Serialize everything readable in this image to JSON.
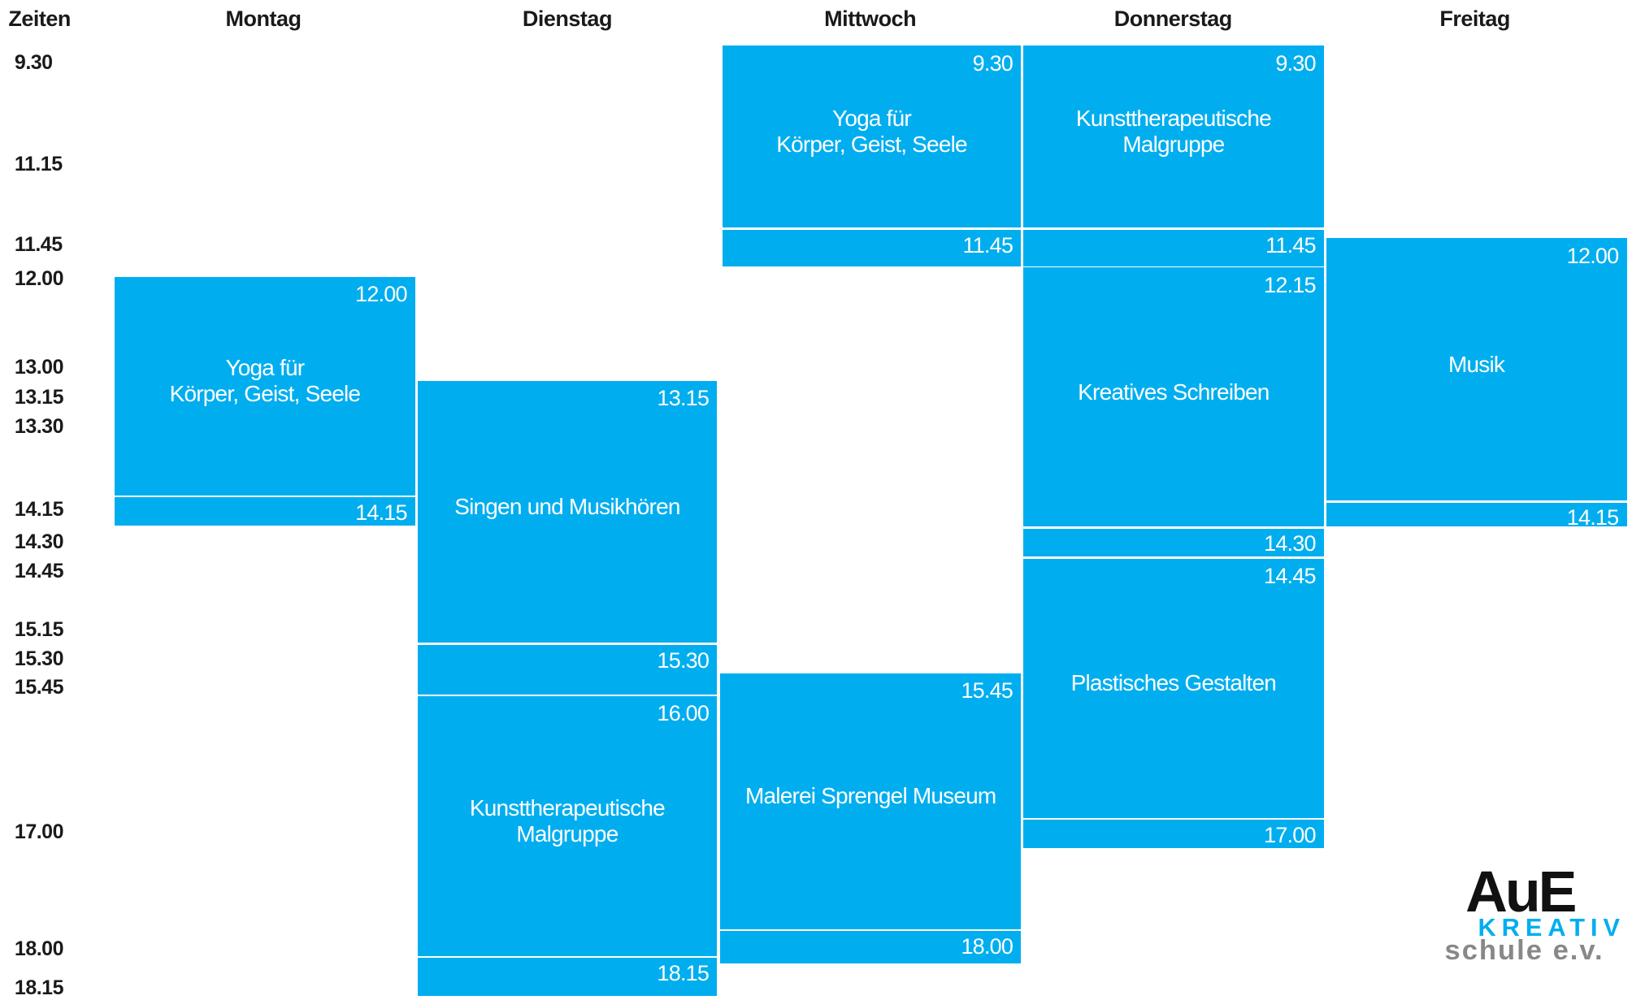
{
  "header": {
    "times_label": "Zeiten"
  },
  "times": [
    "9.30",
    "11.15",
    "11.45",
    "12.00",
    "13.00",
    "13.15",
    "13.30",
    "14.15",
    "14.30",
    "14.45",
    "15.15",
    "15.30",
    "15.45",
    "17.00",
    "18.00",
    "18.15"
  ],
  "days": [
    {
      "name": "Montag",
      "sessions": [
        {
          "start": "12.00",
          "title": [
            "Yoga für",
            "Körper, Geist, Seele"
          ],
          "end": "14.15"
        }
      ]
    },
    {
      "name": "Dienstag",
      "sessions": [
        {
          "start": "13.15",
          "title": [
            "Singen und Musikhören"
          ],
          "end": "15.30"
        },
        {
          "start": "16.00",
          "title": [
            "Kunsttherapeutische",
            "Malgruppe"
          ],
          "end": "18.15"
        }
      ]
    },
    {
      "name": "Mittwoch",
      "sessions": [
        {
          "start": "9.30",
          "title": [
            "Yoga für",
            "Körper, Geist, Seele"
          ],
          "end": "11.45"
        },
        {
          "start": "15.45",
          "title": [
            "Malerei Sprengel Museum"
          ],
          "end": "18.00"
        }
      ]
    },
    {
      "name": "Donnerstag",
      "sessions": [
        {
          "start": "9.30",
          "title": [
            "Kunsttherapeutische",
            "Malgruppe"
          ],
          "end": "11.45"
        },
        {
          "start": "12.15",
          "title": [
            "Kreatives Schreiben"
          ],
          "end": "14.30"
        },
        {
          "start": "14.45",
          "title": [
            "Plastisches Gestalten"
          ],
          "end": "17.00"
        }
      ]
    },
    {
      "name": "Freitag",
      "sessions": [
        {
          "start": "12.00",
          "title": [
            "Musik"
          ],
          "end": "14.15"
        }
      ]
    }
  ],
  "logo": {
    "main": "AuE",
    "sub": "KREATIV",
    "org": "schule e.v."
  }
}
